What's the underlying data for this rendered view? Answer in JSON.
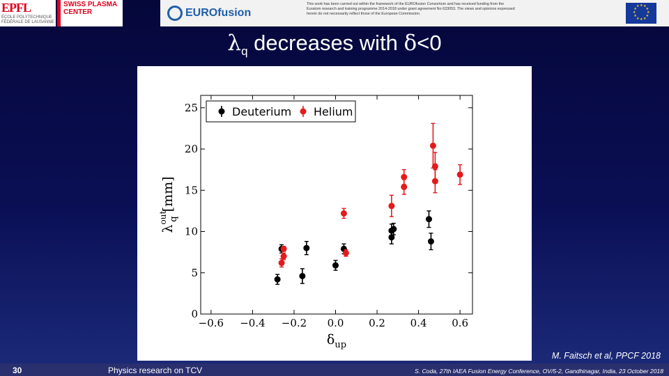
{
  "header": {
    "epfl_logo_text": "EPFL",
    "epfl_logo_subtext": "ÉCOLE POLYTECHNIQUE FÉDÉRALE DE LAUSANNE",
    "spc_logo_text": "SWISS PLASMA CENTER",
    "eurofusion_name": "EUROfusion",
    "disclaimer": "This work has been carried out within the framework of the EUROfusion Consortium and has received funding from the Euratom research and training programme 2014-2018 under grant agreement No 633053. The views and opinions expressed herein do not necessarily reflect those of the European Commission."
  },
  "title": {
    "symbol": "λ",
    "subscript": "q",
    "text": " decreases with ",
    "delta_symbol": "δ",
    "condition": "<0"
  },
  "citation": "M. Faitsch et al, PPCF 2018",
  "footer": {
    "page_number": "30",
    "left_text": "Physics research on TCV",
    "right_text": "S. Coda, 27th IAEA Fusion Energy Conference, OV/5-2, Gandhinagar, India, 23 October 2018"
  },
  "colors": {
    "deuterium": "#000000",
    "helium": "#e41a1c",
    "axis": "#000000"
  },
  "chart_data": {
    "type": "scatter",
    "title": "",
    "xlabel": "δ_up",
    "ylabel": "λq^out [mm]",
    "xlim": [
      -0.65,
      0.66
    ],
    "ylim": [
      0,
      26.5
    ],
    "xticks": [
      -0.6,
      -0.4,
      -0.2,
      0.0,
      0.2,
      0.4,
      0.6
    ],
    "xtick_labels": [
      "−0.6",
      "−0.4",
      "−0.2",
      "0.0",
      "0.2",
      "0.4",
      "0.6"
    ],
    "yticks": [
      0,
      5,
      10,
      15,
      20,
      25
    ],
    "ytick_labels": [
      "0",
      "5",
      "10",
      "15",
      "20",
      "25"
    ],
    "legend_position": "top-left",
    "grid": false,
    "series": [
      {
        "name": "Deuterium",
        "color": "#000000",
        "points": [
          {
            "x": -0.28,
            "y": 4.2,
            "err": 0.6
          },
          {
            "x": -0.26,
            "y": 7.9,
            "err": 0.5
          },
          {
            "x": -0.16,
            "y": 4.6,
            "err": 0.9
          },
          {
            "x": -0.14,
            "y": 8.0,
            "err": 0.8
          },
          {
            "x": 0.0,
            "y": 5.9,
            "err": 0.6
          },
          {
            "x": 0.04,
            "y": 7.9,
            "err": 0.6
          },
          {
            "x": 0.27,
            "y": 9.3,
            "err": 0.8
          },
          {
            "x": 0.27,
            "y": 10.1,
            "err": 0.8
          },
          {
            "x": 0.28,
            "y": 10.3,
            "err": 0.7
          },
          {
            "x": 0.45,
            "y": 11.5,
            "err": 1.0
          },
          {
            "x": 0.46,
            "y": 8.8,
            "err": 1.0
          }
        ]
      },
      {
        "name": "Helium",
        "color": "#e41a1c",
        "points": [
          {
            "x": -0.26,
            "y": 6.2,
            "err": 0.5
          },
          {
            "x": -0.25,
            "y": 7.0,
            "err": 0.4
          },
          {
            "x": -0.25,
            "y": 7.9,
            "err": 0.3
          },
          {
            "x": 0.04,
            "y": 12.2,
            "err": 0.6
          },
          {
            "x": 0.05,
            "y": 7.4,
            "err": 0.4
          },
          {
            "x": 0.27,
            "y": 13.1,
            "err": 1.3
          },
          {
            "x": 0.33,
            "y": 15.4,
            "err": 0.9
          },
          {
            "x": 0.33,
            "y": 16.6,
            "err": 0.9
          },
          {
            "x": 0.47,
            "y": 20.4,
            "err": 2.7
          },
          {
            "x": 0.48,
            "y": 16.1,
            "err": 1.4
          },
          {
            "x": 0.48,
            "y": 17.9,
            "err": 1.7
          },
          {
            "x": 0.6,
            "y": 16.9,
            "err": 1.2
          }
        ]
      }
    ]
  }
}
